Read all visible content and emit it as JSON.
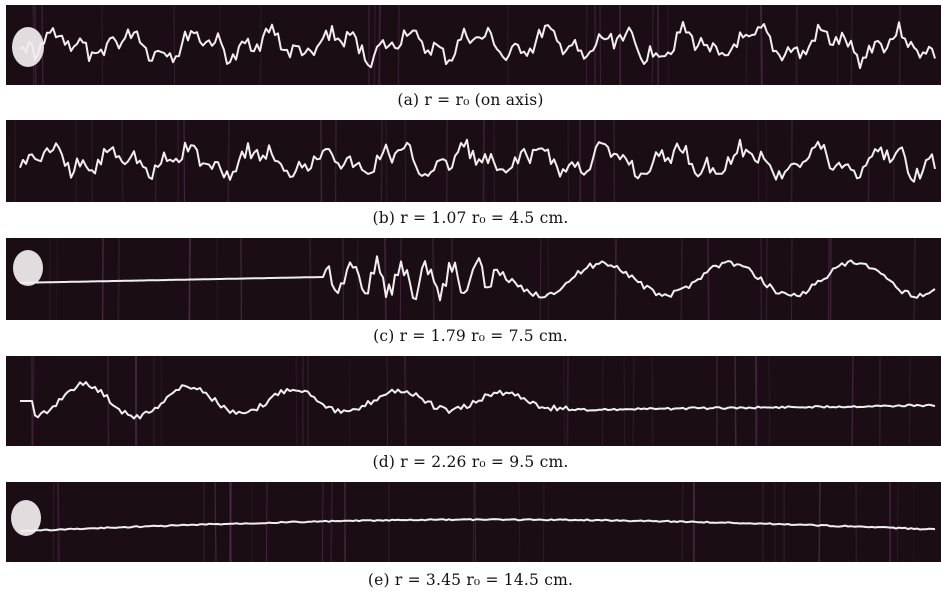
{
  "figure": {
    "colors": {
      "strip_background": "#1a0e14",
      "trace": "#f2eef0",
      "streak": "#5a2f55",
      "caption_text": "#111111"
    },
    "panels": [
      {
        "id": "a",
        "caption": "(a) r = r₀ (on axis)",
        "trace_style": "noisy-turbulent",
        "has_light_spot": true
      },
      {
        "id": "b",
        "caption": "(b) r = 1.07 r₀ = 4.5 cm.",
        "trace_style": "noisy-turbulent",
        "has_light_spot": false
      },
      {
        "id": "c",
        "caption": "(c) r = 1.79 r₀ = 7.5 cm.",
        "trace_style": "quiet-then-bursts",
        "has_light_spot": true
      },
      {
        "id": "d",
        "caption": "(d) r = 2.26 r₀ = 9.5 cm.",
        "trace_style": "bursts-then-quiet",
        "has_light_spot": false
      },
      {
        "id": "e",
        "caption": "(e) r = 3.45 r₀ = 14.5 cm.",
        "trace_style": "smooth",
        "has_light_spot": true
      }
    ]
  }
}
